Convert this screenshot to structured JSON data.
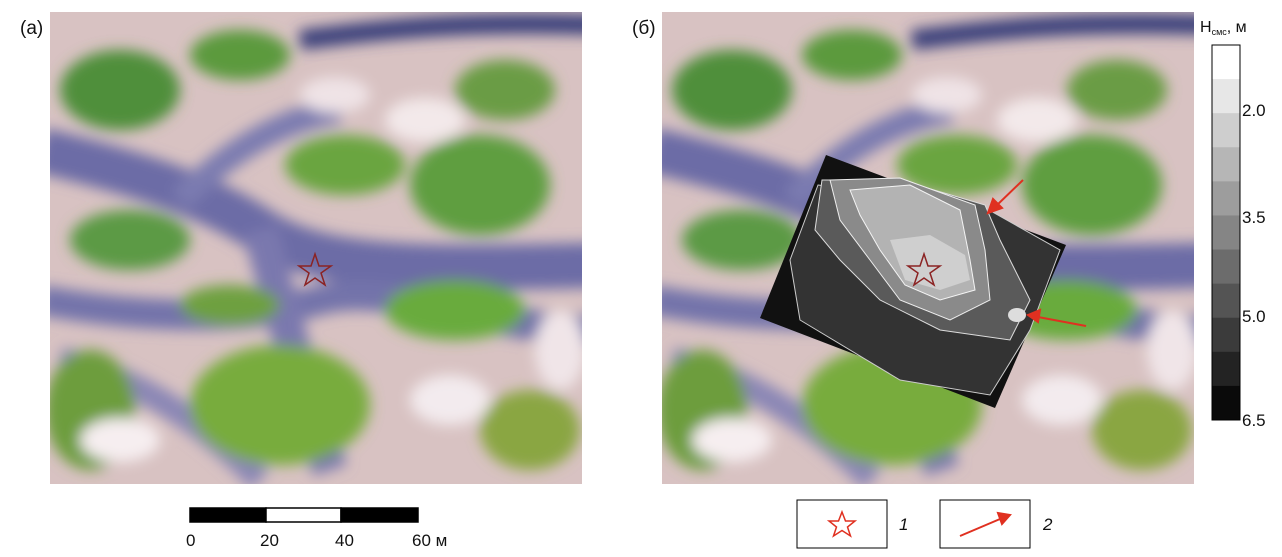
{
  "panels": [
    {
      "label": "(а)"
    },
    {
      "label": "(б)"
    }
  ],
  "scale_bar": {
    "ticks": [
      "0",
      "20",
      "40",
      "60 м"
    ]
  },
  "colorbar": {
    "title": "H",
    "title_sub": "смс",
    "title_suffix": ", м",
    "ticks": [
      "2.0",
      "3.5",
      "5.0",
      "6.5"
    ]
  },
  "legend": {
    "items": [
      {
        "label": "1"
      },
      {
        "label": "2"
      }
    ]
  }
}
